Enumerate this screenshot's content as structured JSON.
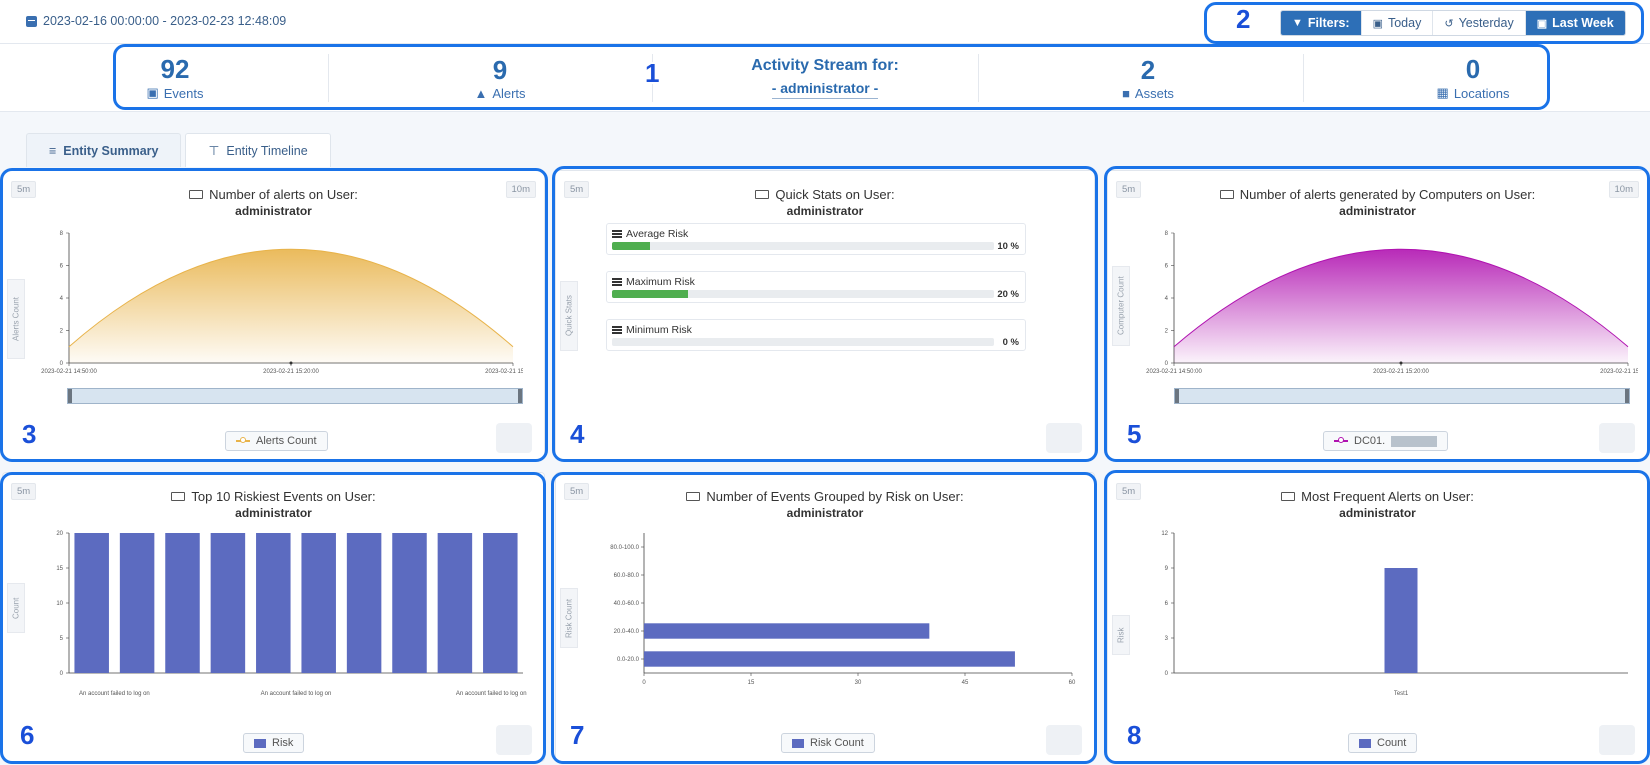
{
  "topbar": {
    "date_range": "2023-02-16 00:00:00 - 2023-02-23 12:48:09",
    "filters": {
      "label": "Filters:",
      "today": "Today",
      "yesterday": "Yesterday",
      "last_week": "Last Week"
    }
  },
  "stats": {
    "events": {
      "value": "92",
      "label": "Events"
    },
    "alerts": {
      "value": "9",
      "label": "Alerts"
    },
    "activity": {
      "title": "Activity Stream for:",
      "user": "- administrator -"
    },
    "assets": {
      "value": "2",
      "label": "Assets"
    },
    "locations": {
      "value": "0",
      "label": "Locations"
    }
  },
  "tabs": [
    {
      "label": "Entity Summary",
      "active": true
    },
    {
      "label": "Entity Timeline",
      "active": false
    }
  ],
  "callouts": [
    "1",
    "2",
    "3",
    "4",
    "5",
    "6",
    "7",
    "8"
  ],
  "panels": {
    "alerts_on_user": {
      "btn_left": "5m",
      "btn_right": "10m",
      "title": "Number of alerts on User:",
      "subtitle": "administrator",
      "ylabel": "Alerts Count",
      "legend": "Alerts Count",
      "color": "#e8b34a"
    },
    "quick_stats": {
      "btn_left": "5m",
      "title": "Quick Stats on User:",
      "subtitle": "administrator",
      "ylabel": "Quick Stats",
      "rows": [
        {
          "label": "Average Risk",
          "value": 10,
          "pct": "10 %"
        },
        {
          "label": "Maximum Risk",
          "value": 20,
          "pct": "20 %"
        },
        {
          "label": "Minimum Risk",
          "value": 0,
          "pct": "0 %"
        }
      ]
    },
    "alerts_by_computers": {
      "btn_left": "5m",
      "btn_right": "10m",
      "title": "Number of alerts generated by Computers on User:",
      "subtitle": "administrator",
      "ylabel": "Computer Count",
      "legend": "DC01.",
      "color": "#b012b0"
    },
    "top10_riskiest": {
      "btn_left": "5m",
      "title": "Top 10 Riskiest Events on User:",
      "subtitle": "administrator",
      "ylabel": "Count",
      "legend": "Risk",
      "color": "#5c6bc0"
    },
    "events_by_risk": {
      "btn_left": "5m",
      "title": "Number of Events Grouped by Risk on User:",
      "subtitle": "administrator",
      "ylabel": "Risk Count",
      "legend": "Risk Count",
      "color": "#5c6bc0"
    },
    "frequent_alerts": {
      "btn_left": "5m",
      "title": "Most Frequent Alerts on User:",
      "subtitle": "administrator",
      "ylabel": "Risk",
      "legend": "Count",
      "color": "#5c6bc0"
    }
  },
  "chart_data": [
    {
      "id": "alerts_on_user",
      "type": "area",
      "x": [
        "2023-02-21 14:50:00",
        "2023-02-21 15:20:00",
        "2023-02-21 15:50:00"
      ],
      "values": [
        1,
        7,
        1
      ],
      "ylim": [
        0,
        8
      ],
      "yticks": [
        0,
        2,
        4,
        6,
        8
      ],
      "series": [
        {
          "name": "Alerts Count",
          "values": [
            1,
            7,
            1
          ]
        }
      ]
    },
    {
      "id": "alerts_by_computers",
      "type": "area",
      "x": [
        "2023-02-21 14:50:00",
        "2023-02-21 15:20:00",
        "2023-02-21 15:50:00"
      ],
      "values": [
        1,
        7,
        1
      ],
      "ylim": [
        0,
        8
      ],
      "yticks": [
        0,
        2,
        4,
        6,
        8
      ],
      "series": [
        {
          "name": "DC01.",
          "values": [
            1,
            7,
            1
          ]
        }
      ]
    },
    {
      "id": "top10_riskiest",
      "type": "bar",
      "categories": [
        "An account failed to log on",
        "An account failed to log on",
        "An account failed to log on",
        "An account failed to log on",
        "An account failed to log on",
        "An account failed to log on",
        "An account failed to log on",
        "An account failed to log on",
        "An account failed to log on",
        "An account failed to log on"
      ],
      "tick_labels": [
        "An account failed to log on",
        "An account failed to log on",
        "An account failed to log on"
      ],
      "values": [
        20,
        20,
        20,
        20,
        20,
        20,
        20,
        20,
        20,
        20
      ],
      "ylim": [
        0,
        20
      ],
      "yticks": [
        0,
        5,
        10,
        15,
        20
      ],
      "series": [
        {
          "name": "Risk",
          "values": [
            20,
            20,
            20,
            20,
            20,
            20,
            20,
            20,
            20,
            20
          ]
        }
      ]
    },
    {
      "id": "events_by_risk",
      "type": "bar",
      "orientation": "horizontal",
      "categories": [
        "0.0-20.0",
        "20.0-40.0",
        "40.0-60.0",
        "60.0-80.0",
        "80.0-100.0"
      ],
      "values": [
        52,
        40,
        0,
        0,
        0
      ],
      "xlim": [
        0,
        60
      ],
      "xticks": [
        0,
        15,
        30,
        45,
        60
      ],
      "series": [
        {
          "name": "Risk Count",
          "values": [
            52,
            40,
            0,
            0,
            0
          ]
        }
      ]
    },
    {
      "id": "frequent_alerts",
      "type": "bar",
      "categories": [
        "Test1"
      ],
      "values": [
        9
      ],
      "ylim": [
        0,
        12
      ],
      "yticks": [
        0,
        3,
        6,
        9,
        12
      ],
      "series": [
        {
          "name": "Count",
          "values": [
            9
          ]
        }
      ]
    }
  ]
}
